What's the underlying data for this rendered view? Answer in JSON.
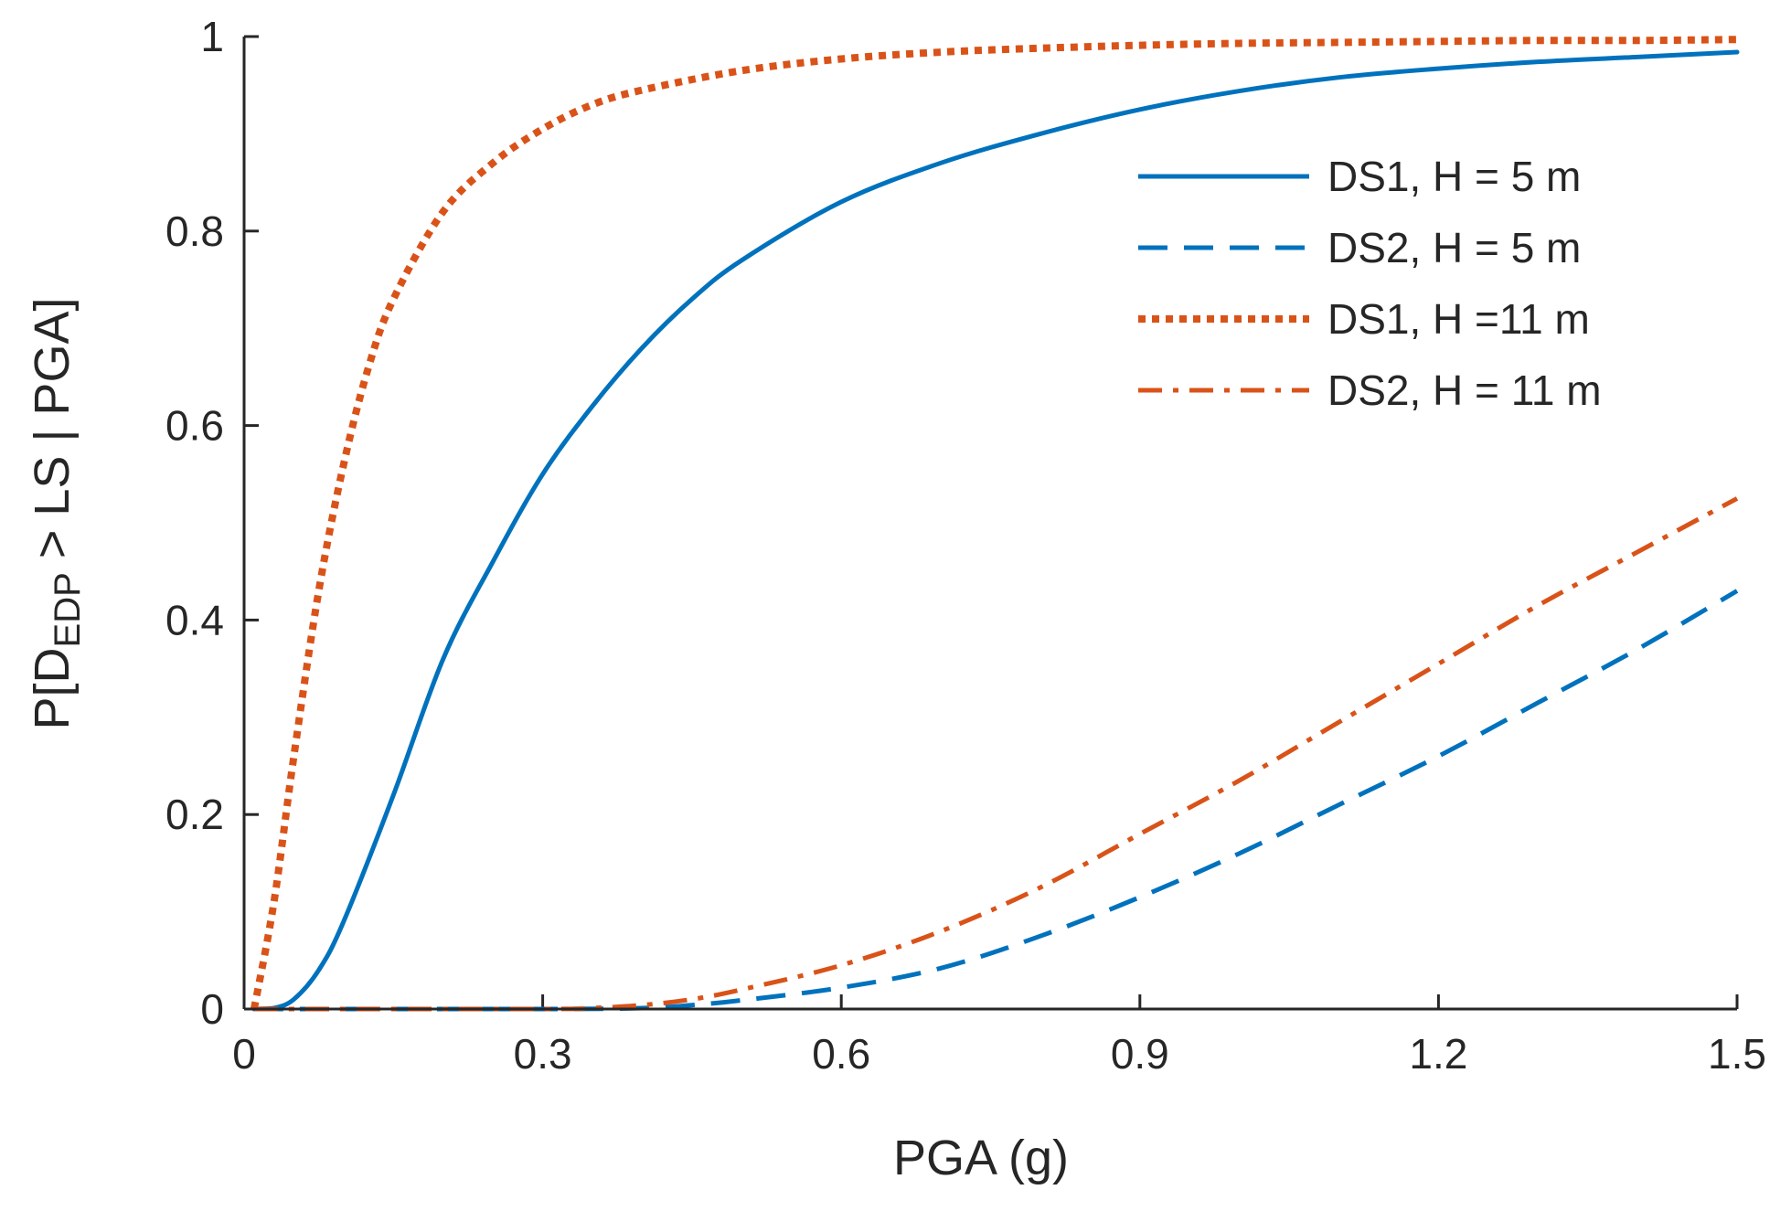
{
  "chart_data": {
    "type": "line",
    "title": "",
    "xlabel": "PGA (g)",
    "ylabel": {
      "prefix": "P[D",
      "subscript": "EDP",
      "suffix": " > LS | PGA]"
    },
    "xlim": [
      0,
      1.5
    ],
    "ylim": [
      0,
      1
    ],
    "xticks": [
      0,
      0.3,
      0.6,
      0.9,
      1.2,
      1.5
    ],
    "xtick_labels": [
      "0",
      "0.3",
      "0.6",
      "0.9",
      "1.2",
      "1.5"
    ],
    "yticks": [
      0,
      0.2,
      0.4,
      0.6,
      0.8,
      1
    ],
    "ytick_labels": [
      "0",
      "0.2",
      "0.4",
      "0.6",
      "0.8",
      "1"
    ],
    "grid": false,
    "legend_position": "top-right",
    "series": [
      {
        "name": "DS1, H = 5 m",
        "color": "#0072BD",
        "style": "solid",
        "x": [
          0.01,
          0.03,
          0.05,
          0.075,
          0.1,
          0.15,
          0.2,
          0.25,
          0.3,
          0.35,
          0.4,
          0.45,
          0.5,
          0.6,
          0.7,
          0.8,
          0.9,
          1.0,
          1.1,
          1.2,
          1.3,
          1.4,
          1.5
        ],
        "values": [
          0.0,
          0.001,
          0.01,
          0.04,
          0.09,
          0.22,
          0.36,
          0.46,
          0.55,
          0.62,
          0.68,
          0.73,
          0.77,
          0.83,
          0.87,
          0.9,
          0.925,
          0.944,
          0.958,
          0.967,
          0.974,
          0.979,
          0.984
        ]
      },
      {
        "name": "DS2, H = 5 m",
        "color": "#0072BD",
        "style": "dashed",
        "x": [
          0.01,
          0.3,
          0.4,
          0.45,
          0.5,
          0.6,
          0.7,
          0.8,
          0.9,
          1.0,
          1.1,
          1.2,
          1.3,
          1.4,
          1.5
        ],
        "values": [
          0.0,
          0.0,
          0.001,
          0.004,
          0.009,
          0.022,
          0.042,
          0.075,
          0.115,
          0.16,
          0.21,
          0.26,
          0.315,
          0.37,
          0.43
        ]
      },
      {
        "name": "DS1, H =11 m",
        "color": "#D95319",
        "style": "dotted",
        "x": [
          0.01,
          0.03,
          0.05,
          0.075,
          0.1,
          0.125,
          0.15,
          0.2,
          0.25,
          0.3,
          0.35,
          0.4,
          0.5,
          0.6,
          0.7,
          0.8,
          0.9,
          1.0,
          1.1,
          1.2,
          1.3,
          1.4,
          1.5
        ],
        "values": [
          0.0,
          0.11,
          0.26,
          0.43,
          0.56,
          0.66,
          0.73,
          0.82,
          0.87,
          0.905,
          0.93,
          0.945,
          0.965,
          0.977,
          0.984,
          0.988,
          0.991,
          0.993,
          0.994,
          0.995,
          0.996,
          0.996,
          0.997
        ]
      },
      {
        "name": "DS2, H = 11 m",
        "color": "#D95319",
        "style": "dashdot",
        "x": [
          0.01,
          0.3,
          0.35,
          0.4,
          0.45,
          0.5,
          0.6,
          0.7,
          0.8,
          0.9,
          1.0,
          1.1,
          1.2,
          1.3,
          1.4,
          1.5
        ],
        "values": [
          0.0,
          0.0,
          0.001,
          0.004,
          0.01,
          0.02,
          0.045,
          0.08,
          0.125,
          0.18,
          0.235,
          0.295,
          0.355,
          0.415,
          0.47,
          0.525
        ]
      }
    ]
  }
}
